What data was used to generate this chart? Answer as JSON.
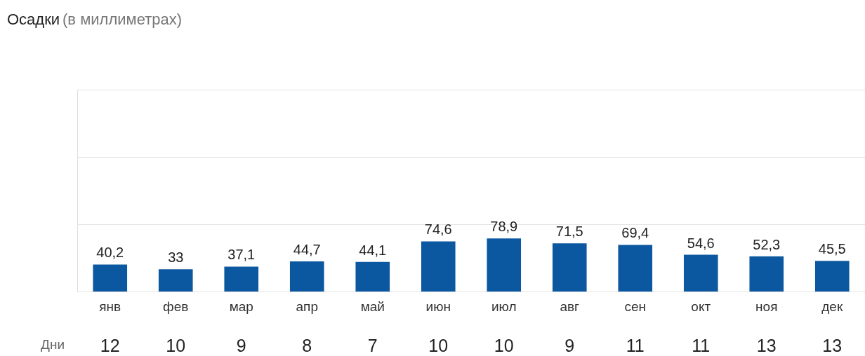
{
  "chart_data": {
    "type": "bar",
    "title": "Осадки",
    "subtitle": "(в миллиметрах)",
    "categories": [
      "янв",
      "фев",
      "мар",
      "апр",
      "май",
      "июн",
      "июл",
      "авг",
      "сен",
      "окт",
      "ноя",
      "дек"
    ],
    "values": [
      40.2,
      33,
      37.1,
      44.7,
      44.1,
      74.6,
      78.9,
      71.5,
      69.4,
      54.6,
      52.3,
      45.5
    ],
    "value_labels": [
      "40,2",
      "33",
      "37,1",
      "44,7",
      "44,1",
      "74,6",
      "78,9",
      "71,5",
      "69,4",
      "54,6",
      "52,3",
      "45,5"
    ],
    "color": "#0b57a0",
    "ylim": [
      0,
      300
    ],
    "yticks": [
      {
        "value": 0,
        "label": null
      },
      {
        "value": 100,
        "label": null
      },
      {
        "value": 200,
        "label": null
      },
      {
        "value": 300,
        "label": null
      }
    ],
    "tick_labels": "x",
    "grid": "y",
    "annotations": [
      "Дни",
      "12",
      "10",
      "9",
      "8",
      "7",
      "10",
      "10",
      "9",
      "11",
      "11",
      "13",
      "13"
    ]
  }
}
